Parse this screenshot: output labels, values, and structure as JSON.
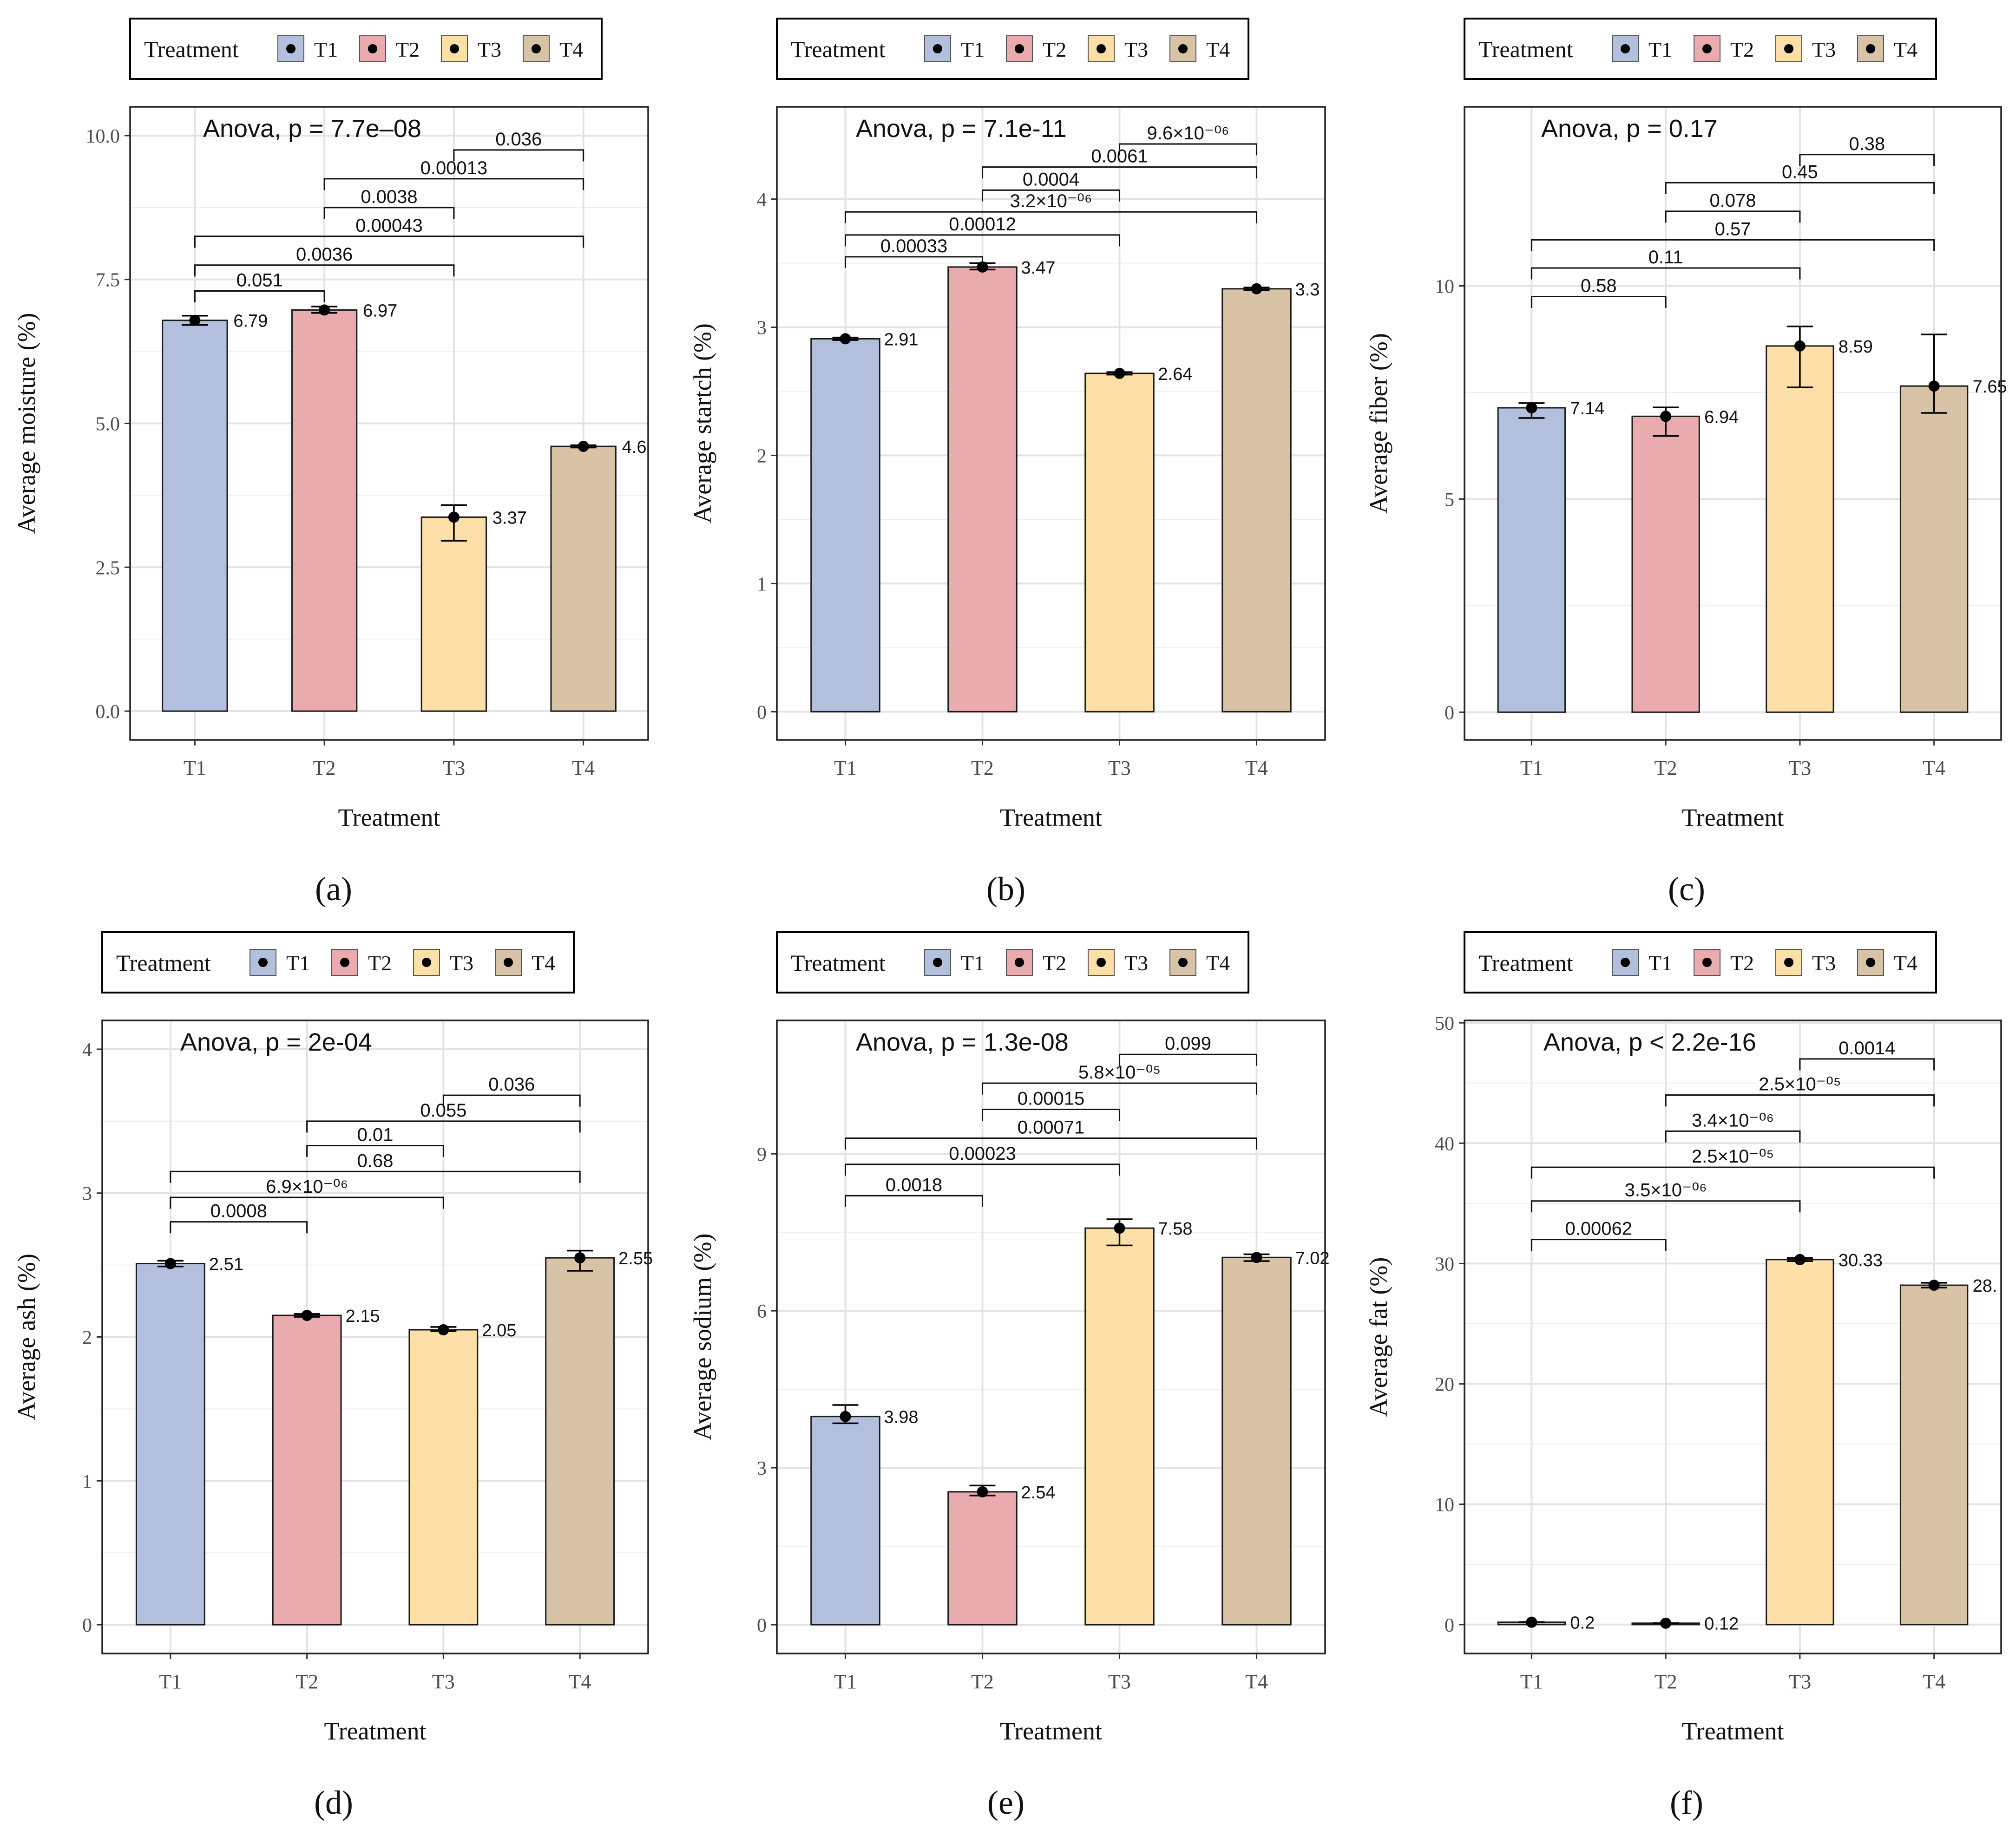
{
  "colors": {
    "T1": "#b2c0dd",
    "T2": "#eaabae",
    "T3": "#fddfa7",
    "T4": "#d9c3a6",
    "bar_stroke": "#1a1a1a",
    "grid": "#e3e3e3",
    "point": "#000000"
  },
  "chart_data": [
    {
      "type": "bar",
      "panel_label": "(a)",
      "legend": {
        "title": "Treatment",
        "entries": [
          "T1",
          "T2",
          "T3",
          "T4"
        ],
        "placement": "top"
      },
      "annotation": "Anova, p = 7.7e‒08",
      "xlabel": "Treatment",
      "ylabel": "Average moisture (%)",
      "categories": [
        "T1",
        "T2",
        "T3",
        "T4"
      ],
      "values": [
        6.79,
        6.97,
        3.37,
        4.6
      ],
      "value_labels": [
        "6.79",
        "6.97",
        "3.37",
        "4.6"
      ],
      "error_low": [
        6.71,
        6.92,
        2.96,
        4.58
      ],
      "error_high": [
        6.87,
        7.03,
        3.58,
        4.62
      ],
      "ylim": [
        -0.5,
        10.5
      ],
      "yticks": [
        0,
        2.5,
        5,
        7.5,
        10
      ],
      "ytick_labels": [
        "0.0",
        "2.5",
        "5.0",
        "7.5",
        "10.0"
      ],
      "comparisons": [
        {
          "from": "T1",
          "to": "T2",
          "label": "0.051",
          "y": 7.3
        },
        {
          "from": "T1",
          "to": "T3",
          "label": "0.0036",
          "y": 7.75
        },
        {
          "from": "T1",
          "to": "T4",
          "label": "0.00043",
          "y": 8.25
        },
        {
          "from": "T2",
          "to": "T3",
          "label": "0.0038",
          "y": 8.75
        },
        {
          "from": "T2",
          "to": "T4",
          "label": "0.00013",
          "y": 9.25
        },
        {
          "from": "T3",
          "to": "T4",
          "label": "0.036",
          "y": 9.75
        }
      ]
    },
    {
      "type": "bar",
      "panel_label": "(b)",
      "legend": {
        "title": "Treatment",
        "entries": [
          "T1",
          "T2",
          "T3",
          "T4"
        ],
        "placement": "top"
      },
      "annotation": "Anova, p = 7.1e-11",
      "xlabel": "Treatment",
      "ylabel": "Average startch (%)",
      "categories": [
        "T1",
        "T2",
        "T3",
        "T4"
      ],
      "values": [
        2.91,
        3.47,
        2.64,
        3.3
      ],
      "value_labels": [
        "2.91",
        "3.47",
        "2.64",
        "3.3"
      ],
      "error_low": [
        2.9,
        3.45,
        2.63,
        3.29
      ],
      "error_high": [
        2.92,
        3.5,
        2.65,
        3.31
      ],
      "ylim": [
        -0.22,
        4.72
      ],
      "yticks": [
        0,
        1,
        2,
        3,
        4
      ],
      "ytick_labels": [
        "0",
        "1",
        "2",
        "3",
        "4"
      ],
      "comparisons": [
        {
          "from": "T1",
          "to": "T2",
          "label": "0.00033",
          "y": 3.55
        },
        {
          "from": "T1",
          "to": "T3",
          "label": "0.00012",
          "y": 3.72
        },
        {
          "from": "T1",
          "to": "T4",
          "label": "3.2×10⁻⁰⁶",
          "y": 3.9
        },
        {
          "from": "T2",
          "to": "T3",
          "label": "0.0004",
          "y": 4.07
        },
        {
          "from": "T2",
          "to": "T4",
          "label": "0.0061",
          "y": 4.25
        },
        {
          "from": "T3",
          "to": "T4",
          "label": "9.6×10⁻⁰⁶",
          "y": 4.43
        }
      ]
    },
    {
      "type": "bar",
      "panel_label": "(c)",
      "legend": {
        "title": "Treatment",
        "entries": [
          "T1",
          "T2",
          "T3",
          "T4"
        ],
        "placement": "top"
      },
      "annotation": "Anova, p = 0.17",
      "xlabel": "Treatment",
      "ylabel": "Average fiber (%)",
      "categories": [
        "T1",
        "T2",
        "T3",
        "T4"
      ],
      "values": [
        7.14,
        6.94,
        8.59,
        7.65
      ],
      "value_labels": [
        "7.14",
        "6.94",
        "8.59",
        "7.65"
      ],
      "error_low": [
        6.9,
        6.48,
        7.62,
        7.02
      ],
      "error_high": [
        7.25,
        7.15,
        9.05,
        8.86
      ],
      "ylim": [
        -0.65,
        14.2
      ],
      "yticks": [
        0,
        5,
        10
      ],
      "ytick_labels": [
        "0",
        "5",
        "10"
      ],
      "comparisons": [
        {
          "from": "T1",
          "to": "T2",
          "label": "0.58",
          "y": 9.75
        },
        {
          "from": "T1",
          "to": "T3",
          "label": "0.11",
          "y": 10.42
        },
        {
          "from": "T1",
          "to": "T4",
          "label": "0.57",
          "y": 11.08
        },
        {
          "from": "T2",
          "to": "T3",
          "label": "0.078",
          "y": 11.75
        },
        {
          "from": "T2",
          "to": "T4",
          "label": "0.45",
          "y": 12.42
        },
        {
          "from": "T3",
          "to": "T4",
          "label": "0.38",
          "y": 13.08
        }
      ]
    },
    {
      "type": "bar",
      "panel_label": "(d)",
      "legend": {
        "title": "Treatment",
        "entries": [
          "T1",
          "T2",
          "T3",
          "T4"
        ],
        "placement": "top"
      },
      "annotation": "Anova, p = 2e-04",
      "xlabel": "Treatment",
      "ylabel": "Average ash (%)",
      "categories": [
        "T1",
        "T2",
        "T3",
        "T4"
      ],
      "values": [
        2.51,
        2.15,
        2.05,
        2.55
      ],
      "value_labels": [
        "2.51",
        "2.15",
        "2.05",
        "2.55"
      ],
      "error_low": [
        2.49,
        2.14,
        2.04,
        2.46
      ],
      "error_high": [
        2.53,
        2.16,
        2.07,
        2.6
      ],
      "ylim": [
        -0.2,
        4.2
      ],
      "yticks": [
        0,
        1,
        2,
        3,
        4
      ],
      "ytick_labels": [
        "0",
        "1",
        "2",
        "3",
        "4"
      ],
      "comparisons": [
        {
          "from": "T1",
          "to": "T2",
          "label": "0.0008",
          "y": 2.8
        },
        {
          "from": "T1",
          "to": "T3",
          "label": "6.9×10⁻⁰⁶",
          "y": 2.97
        },
        {
          "from": "T1",
          "to": "T4",
          "label": "0.68",
          "y": 3.15
        },
        {
          "from": "T2",
          "to": "T3",
          "label": "0.01",
          "y": 3.33
        },
        {
          "from": "T2",
          "to": "T4",
          "label": "0.055",
          "y": 3.5
        },
        {
          "from": "T3",
          "to": "T4",
          "label": "0.036",
          "y": 3.68
        }
      ]
    },
    {
      "type": "bar",
      "panel_label": "(e)",
      "legend": {
        "title": "Treatment",
        "entries": [
          "T1",
          "T2",
          "T3",
          "T4"
        ],
        "placement": "top"
      },
      "annotation": "Anova, p = 1.3e-08",
      "xlabel": "Treatment",
      "ylabel": "Average sodium (%)",
      "categories": [
        "T1",
        "T2",
        "T3",
        "T4"
      ],
      "values": [
        3.98,
        2.54,
        7.58,
        7.02
      ],
      "value_labels": [
        "3.98",
        "2.54",
        "7.58",
        "7.02"
      ],
      "error_low": [
        3.85,
        2.47,
        7.25,
        6.95
      ],
      "error_high": [
        4.2,
        2.66,
        7.75,
        7.08
      ],
      "ylim": [
        -0.55,
        11.55
      ],
      "yticks": [
        0,
        3,
        6,
        9
      ],
      "ytick_labels": [
        "0",
        "3",
        "6",
        "9"
      ],
      "comparisons": [
        {
          "from": "T1",
          "to": "T2",
          "label": "0.0018",
          "y": 8.2
        },
        {
          "from": "T1",
          "to": "T3",
          "label": "0.00023",
          "y": 8.8
        },
        {
          "from": "T1",
          "to": "T4",
          "label": "0.00071",
          "y": 9.3
        },
        {
          "from": "T2",
          "to": "T3",
          "label": "0.00015",
          "y": 9.85
        },
        {
          "from": "T2",
          "to": "T4",
          "label": "5.8×10⁻⁰⁵",
          "y": 10.35
        },
        {
          "from": "T3",
          "to": "T4",
          "label": "0.099",
          "y": 10.9
        }
      ]
    },
    {
      "type": "bar",
      "panel_label": "(f)",
      "legend": {
        "title": "Treatment",
        "entries": [
          "T1",
          "T2",
          "T3",
          "T4"
        ],
        "placement": "top"
      },
      "annotation": "Anova, p < 2.2e-16",
      "xlabel": "Treatment",
      "ylabel": "Average fat (%)",
      "categories": [
        "T1",
        "T2",
        "T3",
        "T4"
      ],
      "values": [
        0.2,
        0.12,
        30.33,
        28.2
      ],
      "value_labels": [
        "0.2",
        "0.12",
        "30.33",
        "28."
      ],
      "error_low": [
        0.18,
        0.11,
        30.2,
        28.0
      ],
      "error_high": [
        0.22,
        0.13,
        30.45,
        28.4
      ],
      "ylim": [
        -2.4,
        50.2
      ],
      "yticks": [
        0,
        10,
        20,
        30,
        40,
        50
      ],
      "ytick_labels": [
        "0",
        "10",
        "20",
        "30",
        "40",
        "50"
      ],
      "comparisons": [
        {
          "from": "T1",
          "to": "T2",
          "label": "0.00062",
          "y": 32.0
        },
        {
          "from": "T1",
          "to": "T3",
          "label": "3.5×10⁻⁰⁶",
          "y": 35.2
        },
        {
          "from": "T1",
          "to": "T4",
          "label": "2.5×10⁻⁰⁵",
          "y": 38.0
        },
        {
          "from": "T2",
          "to": "T3",
          "label": "3.4×10⁻⁰⁶",
          "y": 41.0
        },
        {
          "from": "T2",
          "to": "T4",
          "label": "2.5×10⁻⁰⁵",
          "y": 44.0
        },
        {
          "from": "T3",
          "to": "T4",
          "label": "0.0014",
          "y": 47.0
        }
      ]
    }
  ]
}
